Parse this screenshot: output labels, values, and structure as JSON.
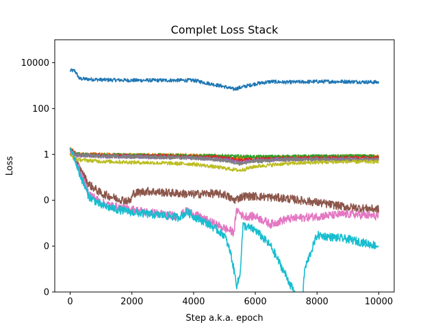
{
  "chart_data": {
    "type": "line",
    "title": "Complet Loss Stack",
    "xlabel": "Step a.k.a. epoch",
    "ylabel": "Loss",
    "yscale": "log",
    "xlim": [
      -500,
      10500
    ],
    "ylim": [
      1e-06,
      100000
    ],
    "xticks": [
      0,
      2000,
      4000,
      6000,
      8000,
      10000
    ],
    "xtick_labels": [
      "0",
      "2000",
      "4000",
      "6000",
      "8000",
      "10000"
    ],
    "yticks": [
      10000,
      100,
      1,
      0.01,
      0.0001,
      1e-06,
      1e-08
    ],
    "ytick_labels": [
      "10000",
      "100",
      "1",
      "0",
      "0",
      "0",
      "0"
    ],
    "grid": false,
    "legend": "none",
    "series": [
      {
        "color": "#1f77b4",
        "points": [
          [
            0,
            4500
          ],
          [
            150,
            4500
          ],
          [
            300,
            2000
          ],
          [
            1000,
            1800
          ],
          [
            2000,
            1700
          ],
          [
            3000,
            1700
          ],
          [
            4000,
            1700
          ],
          [
            5000,
            900
          ],
          [
            5300,
            700
          ],
          [
            6000,
            1200
          ],
          [
            6500,
            1500
          ],
          [
            7000,
            1400
          ],
          [
            8000,
            1500
          ],
          [
            9000,
            1500
          ],
          [
            10000,
            1400
          ]
        ]
      },
      {
        "color": "#ff7f0e",
        "points": [
          [
            0,
            1.8
          ],
          [
            200,
            1.05
          ],
          [
            1000,
            0.98
          ],
          [
            2000,
            0.95
          ],
          [
            3000,
            0.93
          ],
          [
            4000,
            0.9
          ],
          [
            5000,
            0.8
          ],
          [
            5500,
            0.7
          ],
          [
            6000,
            0.75
          ],
          [
            7000,
            0.78
          ],
          [
            8000,
            0.8
          ],
          [
            9000,
            0.82
          ],
          [
            10000,
            0.82
          ]
        ]
      },
      {
        "color": "#2ca02c",
        "points": [
          [
            0,
            1.7
          ],
          [
            200,
            1.0
          ],
          [
            1000,
            0.95
          ],
          [
            2000,
            0.92
          ],
          [
            3000,
            0.9
          ],
          [
            4000,
            0.88
          ],
          [
            5000,
            0.85
          ],
          [
            5500,
            0.8
          ],
          [
            6000,
            0.78
          ],
          [
            7000,
            0.8
          ],
          [
            8000,
            0.82
          ],
          [
            9000,
            0.83
          ],
          [
            10000,
            0.83
          ]
        ]
      },
      {
        "color": "#d62728",
        "points": [
          [
            0,
            1.6
          ],
          [
            200,
            0.95
          ],
          [
            1000,
            0.9
          ],
          [
            2000,
            0.85
          ],
          [
            3000,
            0.82
          ],
          [
            4000,
            0.8
          ],
          [
            5000,
            0.72
          ],
          [
            5500,
            0.55
          ],
          [
            6000,
            0.62
          ],
          [
            7000,
            0.66
          ],
          [
            8000,
            0.7
          ],
          [
            9000,
            0.7
          ],
          [
            10000,
            0.7
          ]
        ]
      },
      {
        "color": "#9467bd",
        "points": [
          [
            0,
            1.5
          ],
          [
            200,
            0.9
          ],
          [
            1000,
            0.82
          ],
          [
            2000,
            0.78
          ],
          [
            3000,
            0.75
          ],
          [
            4000,
            0.7
          ],
          [
            5000,
            0.6
          ],
          [
            5500,
            0.45
          ],
          [
            6000,
            0.55
          ],
          [
            7000,
            0.6
          ],
          [
            8000,
            0.62
          ],
          [
            9000,
            0.6
          ],
          [
            10000,
            0.6
          ]
        ]
      },
      {
        "color": "#8c564b",
        "points": [
          [
            0,
            1.4
          ],
          [
            100,
            1.0
          ],
          [
            300,
            0.25
          ],
          [
            600,
            0.05
          ],
          [
            1000,
            0.02
          ],
          [
            1500,
            0.012
          ],
          [
            1950,
            0.009
          ],
          [
            2050,
            0.02
          ],
          [
            2500,
            0.025
          ],
          [
            3000,
            0.022
          ],
          [
            3500,
            0.02
          ],
          [
            4000,
            0.018
          ],
          [
            4500,
            0.02
          ],
          [
            5000,
            0.018
          ],
          [
            5300,
            0.01
          ],
          [
            5600,
            0.015
          ],
          [
            6000,
            0.015
          ],
          [
            7000,
            0.012
          ],
          [
            8000,
            0.008
          ],
          [
            9000,
            0.005
          ],
          [
            10000,
            0.004
          ]
        ]
      },
      {
        "color": "#e377c2",
        "points": [
          [
            0,
            1.4
          ],
          [
            100,
            1.0
          ],
          [
            300,
            0.2
          ],
          [
            600,
            0.02
          ],
          [
            1000,
            0.008
          ],
          [
            1500,
            0.005
          ],
          [
            2000,
            0.004
          ],
          [
            2500,
            0.003
          ],
          [
            3000,
            0.0025
          ],
          [
            3500,
            0.002
          ],
          [
            3800,
            0.0035
          ],
          [
            4000,
            0.0025
          ],
          [
            4500,
            0.0012
          ],
          [
            5000,
            0.0006
          ],
          [
            5300,
            0.0004
          ],
          [
            5400,
            0.004
          ],
          [
            5600,
            0.002
          ],
          [
            6000,
            0.002
          ],
          [
            6500,
            0.0009
          ],
          [
            7000,
            0.0015
          ],
          [
            8000,
            0.002
          ],
          [
            9000,
            0.0025
          ],
          [
            10000,
            0.002
          ]
        ]
      },
      {
        "color": "#7f7f7f",
        "points": [
          [
            0,
            1.3
          ],
          [
            200,
            0.95
          ],
          [
            1000,
            0.85
          ],
          [
            2000,
            0.8
          ],
          [
            3000,
            0.75
          ],
          [
            4000,
            0.7
          ],
          [
            5000,
            0.55
          ],
          [
            5500,
            0.4
          ],
          [
            6000,
            0.5
          ],
          [
            7000,
            0.6
          ],
          [
            8000,
            0.62
          ],
          [
            9000,
            0.6
          ],
          [
            10000,
            0.6
          ]
        ]
      },
      {
        "color": "#bcbd22",
        "points": [
          [
            0,
            0.9
          ],
          [
            200,
            0.6
          ],
          [
            1000,
            0.5
          ],
          [
            2000,
            0.45
          ],
          [
            3000,
            0.42
          ],
          [
            4000,
            0.38
          ],
          [
            5000,
            0.25
          ],
          [
            5500,
            0.2
          ],
          [
            6000,
            0.3
          ],
          [
            7000,
            0.4
          ],
          [
            8000,
            0.45
          ],
          [
            9000,
            0.48
          ],
          [
            10000,
            0.48
          ]
        ]
      },
      {
        "color": "#17becf",
        "points": [
          [
            0,
            1.4
          ],
          [
            100,
            1.0
          ],
          [
            300,
            0.15
          ],
          [
            600,
            0.015
          ],
          [
            1000,
            0.006
          ],
          [
            1500,
            0.004
          ],
          [
            2000,
            0.003
          ],
          [
            2500,
            0.0025
          ],
          [
            3000,
            0.0022
          ],
          [
            3500,
            0.0018
          ],
          [
            3800,
            0.003
          ],
          [
            4000,
            0.002
          ],
          [
            4500,
            0.0009
          ],
          [
            5000,
            0.0003
          ],
          [
            5200,
            5e-05
          ],
          [
            5400,
            2e-06
          ],
          [
            5500,
            5e-06
          ],
          [
            5600,
            0.0008
          ],
          [
            6000,
            0.0005
          ],
          [
            6500,
            0.0001
          ],
          [
            7000,
            5e-06
          ],
          [
            7500,
            2e-07
          ],
          [
            7600,
            1e-05
          ],
          [
            8000,
            0.0003
          ],
          [
            9000,
            0.0002
          ],
          [
            10000,
            0.0001
          ]
        ]
      }
    ]
  }
}
